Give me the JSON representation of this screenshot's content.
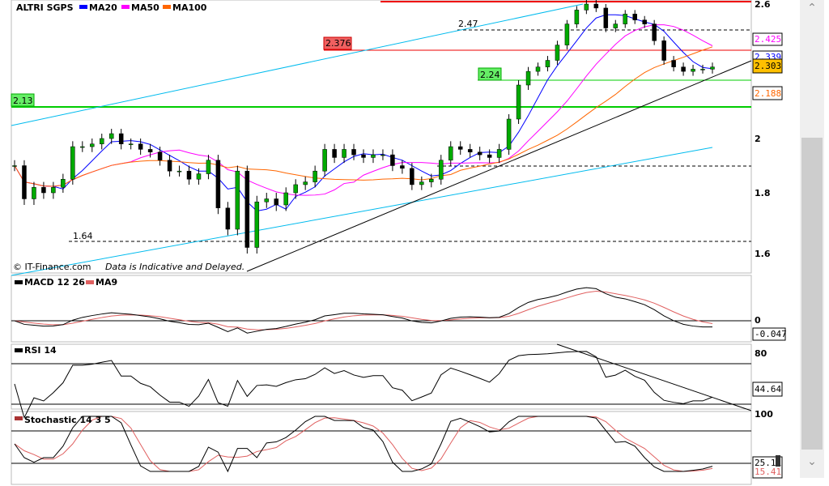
{
  "header": {
    "symbol": "ALTRI SGPS",
    "ma20": "MA20",
    "ma50": "MA50",
    "ma100": "MA100"
  },
  "footer": {
    "copyright": "© IT-Finance.com",
    "disclaimer": "Data is Indicative and Delayed."
  },
  "levels": {
    "l247": "2.47",
    "l2376": "2.376",
    "l224": "2.24",
    "l213": "2.13",
    "l164": "1.64"
  },
  "axis": {
    "price": [
      "2.6",
      "2",
      "1.8",
      "1.6"
    ],
    "macd_zero": "0",
    "rsi_80": "80",
    "stoch_100": "100"
  },
  "badges": {
    "ma50": "2.425",
    "ma20": "2.339",
    "last": "2.303",
    "ma100": "2.188",
    "macd": "-0.047",
    "rsi": "44.64",
    "stoch_k": "25.11",
    "stoch_d": "15.41"
  },
  "panels": {
    "macd": "MACD 12 26",
    "ma9": "MA9",
    "rsi": "RSI 14",
    "stoch": "Stochastic 14 3 5"
  },
  "colors": {
    "ma20": "#0000ff",
    "ma50": "#ff00ff",
    "ma100": "#ff6600",
    "up": "#00aa00",
    "last": "#ffc000",
    "signal": "#e06060"
  },
  "chart_data": {
    "type": "candlestick",
    "title": "ALTRI SGPS",
    "ylim": [
      1.55,
      2.62
    ],
    "closes": [
      1.9,
      1.78,
      1.82,
      1.8,
      1.82,
      1.85,
      1.97,
      1.97,
      1.98,
      2.0,
      2.02,
      1.98,
      1.98,
      1.96,
      1.95,
      1.92,
      1.88,
      1.88,
      1.85,
      1.87,
      1.92,
      1.75,
      1.68,
      1.88,
      1.62,
      1.77,
      1.78,
      1.76,
      1.8,
      1.83,
      1.84,
      1.88,
      1.96,
      1.93,
      1.96,
      1.94,
      1.93,
      1.94,
      1.94,
      1.9,
      1.89,
      1.83,
      1.84,
      1.85,
      1.92,
      1.97,
      1.96,
      1.95,
      1.94,
      1.93,
      1.96,
      2.08,
      2.22,
      2.28,
      2.3,
      2.33,
      2.4,
      2.5,
      2.57,
      2.6,
      2.58,
      2.48,
      2.5,
      2.55,
      2.52,
      2.5,
      2.42,
      2.33,
      2.3,
      2.28,
      2.29,
      2.29,
      2.3
    ]
  }
}
